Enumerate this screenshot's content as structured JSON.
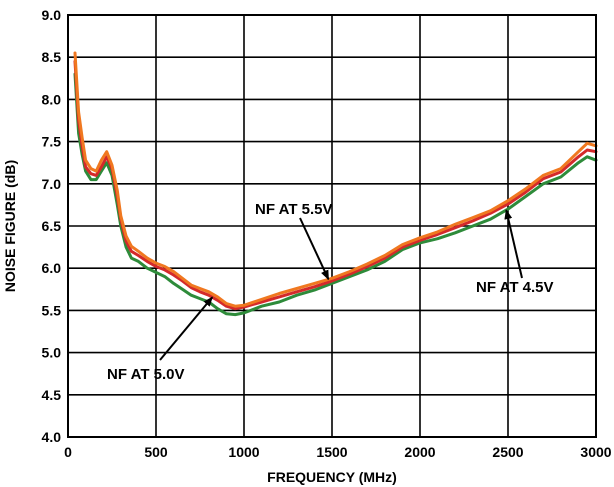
{
  "chart_data": {
    "type": "line",
    "title": "",
    "xlabel": "FREQUENCY (MHz)",
    "ylabel": "NOISE FIGURE (dB)",
    "xlim": [
      0,
      3000
    ],
    "ylim": [
      4.0,
      9.0
    ],
    "xticks": [
      "0",
      "500",
      "1000",
      "1500",
      "2000",
      "2500",
      "3000"
    ],
    "yticks": [
      "4.0",
      "4.5",
      "5.0",
      "5.5",
      "6.0",
      "6.5",
      "7.0",
      "7.5",
      "8.0",
      "8.5",
      "9.0"
    ],
    "grid": true,
    "annotations": [
      {
        "text": "NF AT 5.5V",
        "series": 2,
        "point_x": 1480
      },
      {
        "text": "NF AT 4.5V",
        "series": 0,
        "point_x": 2490
      },
      {
        "text": "NF AT 5.0V",
        "series": 1,
        "point_x": 820
      }
    ],
    "series": [
      {
        "color": "#2e8b3a",
        "x": [
          40,
          60,
          80,
          100,
          130,
          160,
          190,
          220,
          250,
          280,
          300,
          330,
          360,
          400,
          450,
          500,
          550,
          600,
          650,
          700,
          750,
          800,
          850,
          900,
          950,
          1000,
          1100,
          1200,
          1300,
          1400,
          1500,
          1600,
          1700,
          1800,
          1900,
          2000,
          2100,
          2200,
          2300,
          2400,
          2500,
          2600,
          2700,
          2800,
          2900,
          2950,
          3000
        ],
        "values": [
          8.3,
          7.6,
          7.35,
          7.15,
          7.05,
          7.05,
          7.15,
          7.25,
          7.1,
          6.75,
          6.5,
          6.25,
          6.12,
          6.08,
          6.0,
          5.95,
          5.9,
          5.82,
          5.75,
          5.68,
          5.64,
          5.6,
          5.52,
          5.46,
          5.45,
          5.47,
          5.55,
          5.6,
          5.68,
          5.74,
          5.82,
          5.9,
          5.98,
          6.08,
          6.22,
          6.3,
          6.35,
          6.42,
          6.5,
          6.58,
          6.7,
          6.85,
          7.0,
          7.08,
          7.25,
          7.32,
          7.28
        ]
      },
      {
        "color": "#d42a2a",
        "x": [
          40,
          60,
          80,
          100,
          130,
          160,
          190,
          220,
          250,
          280,
          300,
          330,
          360,
          400,
          450,
          500,
          550,
          600,
          650,
          700,
          750,
          800,
          850,
          900,
          950,
          1000,
          1100,
          1200,
          1300,
          1400,
          1500,
          1600,
          1700,
          1800,
          1900,
          2000,
          2100,
          2200,
          2300,
          2400,
          2500,
          2600,
          2700,
          2800,
          2900,
          2950,
          3000
        ],
        "values": [
          8.45,
          7.75,
          7.45,
          7.2,
          7.12,
          7.1,
          7.2,
          7.32,
          7.18,
          6.85,
          6.58,
          6.32,
          6.2,
          6.15,
          6.08,
          6.02,
          5.98,
          5.92,
          5.85,
          5.77,
          5.72,
          5.68,
          5.62,
          5.55,
          5.52,
          5.54,
          5.6,
          5.66,
          5.72,
          5.78,
          5.85,
          5.93,
          6.02,
          6.12,
          6.25,
          6.33,
          6.4,
          6.48,
          6.56,
          6.65,
          6.76,
          6.9,
          7.06,
          7.14,
          7.32,
          7.4,
          7.38
        ]
      },
      {
        "color": "#f07820",
        "x": [
          40,
          60,
          80,
          100,
          130,
          160,
          190,
          220,
          250,
          280,
          300,
          330,
          360,
          400,
          450,
          500,
          550,
          600,
          650,
          700,
          750,
          800,
          850,
          900,
          950,
          1000,
          1100,
          1200,
          1300,
          1400,
          1500,
          1600,
          1700,
          1800,
          1900,
          2000,
          2100,
          2200,
          2300,
          2400,
          2500,
          2600,
          2700,
          2800,
          2900,
          2950,
          3000
        ],
        "values": [
          8.55,
          7.85,
          7.55,
          7.28,
          7.18,
          7.15,
          7.28,
          7.38,
          7.22,
          6.92,
          6.62,
          6.38,
          6.26,
          6.2,
          6.12,
          6.06,
          6.02,
          5.96,
          5.88,
          5.8,
          5.76,
          5.72,
          5.66,
          5.58,
          5.55,
          5.56,
          5.63,
          5.7,
          5.76,
          5.82,
          5.88,
          5.96,
          6.05,
          6.15,
          6.28,
          6.36,
          6.43,
          6.52,
          6.6,
          6.68,
          6.8,
          6.94,
          7.1,
          7.18,
          7.38,
          7.48,
          7.45
        ]
      }
    ]
  }
}
